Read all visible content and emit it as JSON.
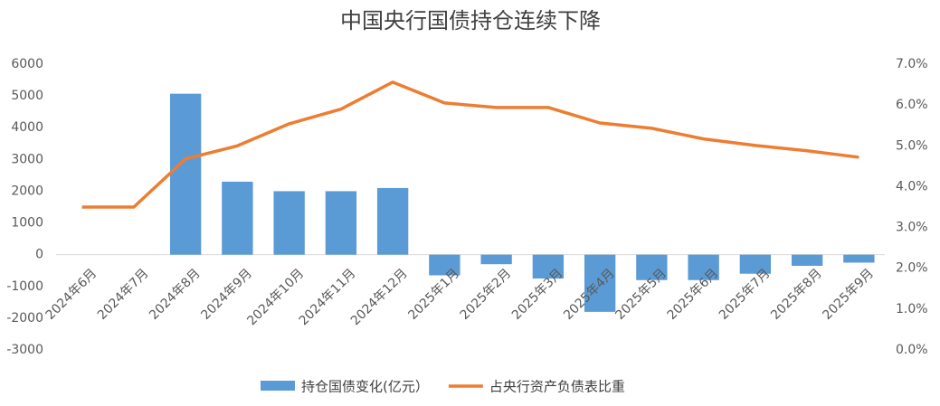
{
  "chart_data": {
    "type": "bar_line",
    "title": "中国央行国债持仓连续下降",
    "categories": [
      "2024年6月",
      "2024年7月",
      "2024年8月",
      "2024年9月",
      "2024年10月",
      "2024年11月",
      "2024年12月",
      "2025年1月",
      "2025年2月",
      "2025年3月",
      "2025年4月",
      "2025年5月",
      "2025年6月",
      "2025年7月",
      "2025年8月",
      "2025年9月"
    ],
    "series": [
      {
        "name": "持仓国债变化(亿元）",
        "color": "#5b9bd5",
        "type": "bar",
        "values": [
          0,
          0,
          5070,
          2300,
          2000,
          2000,
          2100,
          -650,
          -300,
          -750,
          -1800,
          -800,
          -800,
          -600,
          -350,
          -250
        ]
      },
      {
        "name": "占央行资产负债表比重",
        "color": "#ed7d31",
        "type": "line",
        "axis": "y2",
        "values": [
          3.5,
          3.5,
          4.68,
          5.0,
          5.54,
          5.9,
          6.56,
          6.05,
          5.94,
          5.94,
          5.56,
          5.43,
          5.17,
          5.01,
          4.88,
          4.72
        ]
      }
    ],
    "ylim": [
      -3000,
      6000
    ],
    "yticks": [
      -3000,
      -2000,
      -1000,
      0,
      1000,
      2000,
      3000,
      4000,
      5000,
      6000
    ],
    "y2lim": [
      0,
      7
    ],
    "y2ticks": [
      {
        "value": 0,
        "label": "0.0%"
      },
      {
        "value": 1,
        "label": "1.0%"
      },
      {
        "value": 2,
        "label": "2.0%"
      },
      {
        "value": 3,
        "label": "3.0%"
      },
      {
        "value": 4,
        "label": "4.0%"
      },
      {
        "value": 5,
        "label": "5.0%"
      },
      {
        "value": 6,
        "label": "6.0%"
      },
      {
        "value": 7,
        "label": "7.0%"
      }
    ],
    "legend": "bottom"
  }
}
